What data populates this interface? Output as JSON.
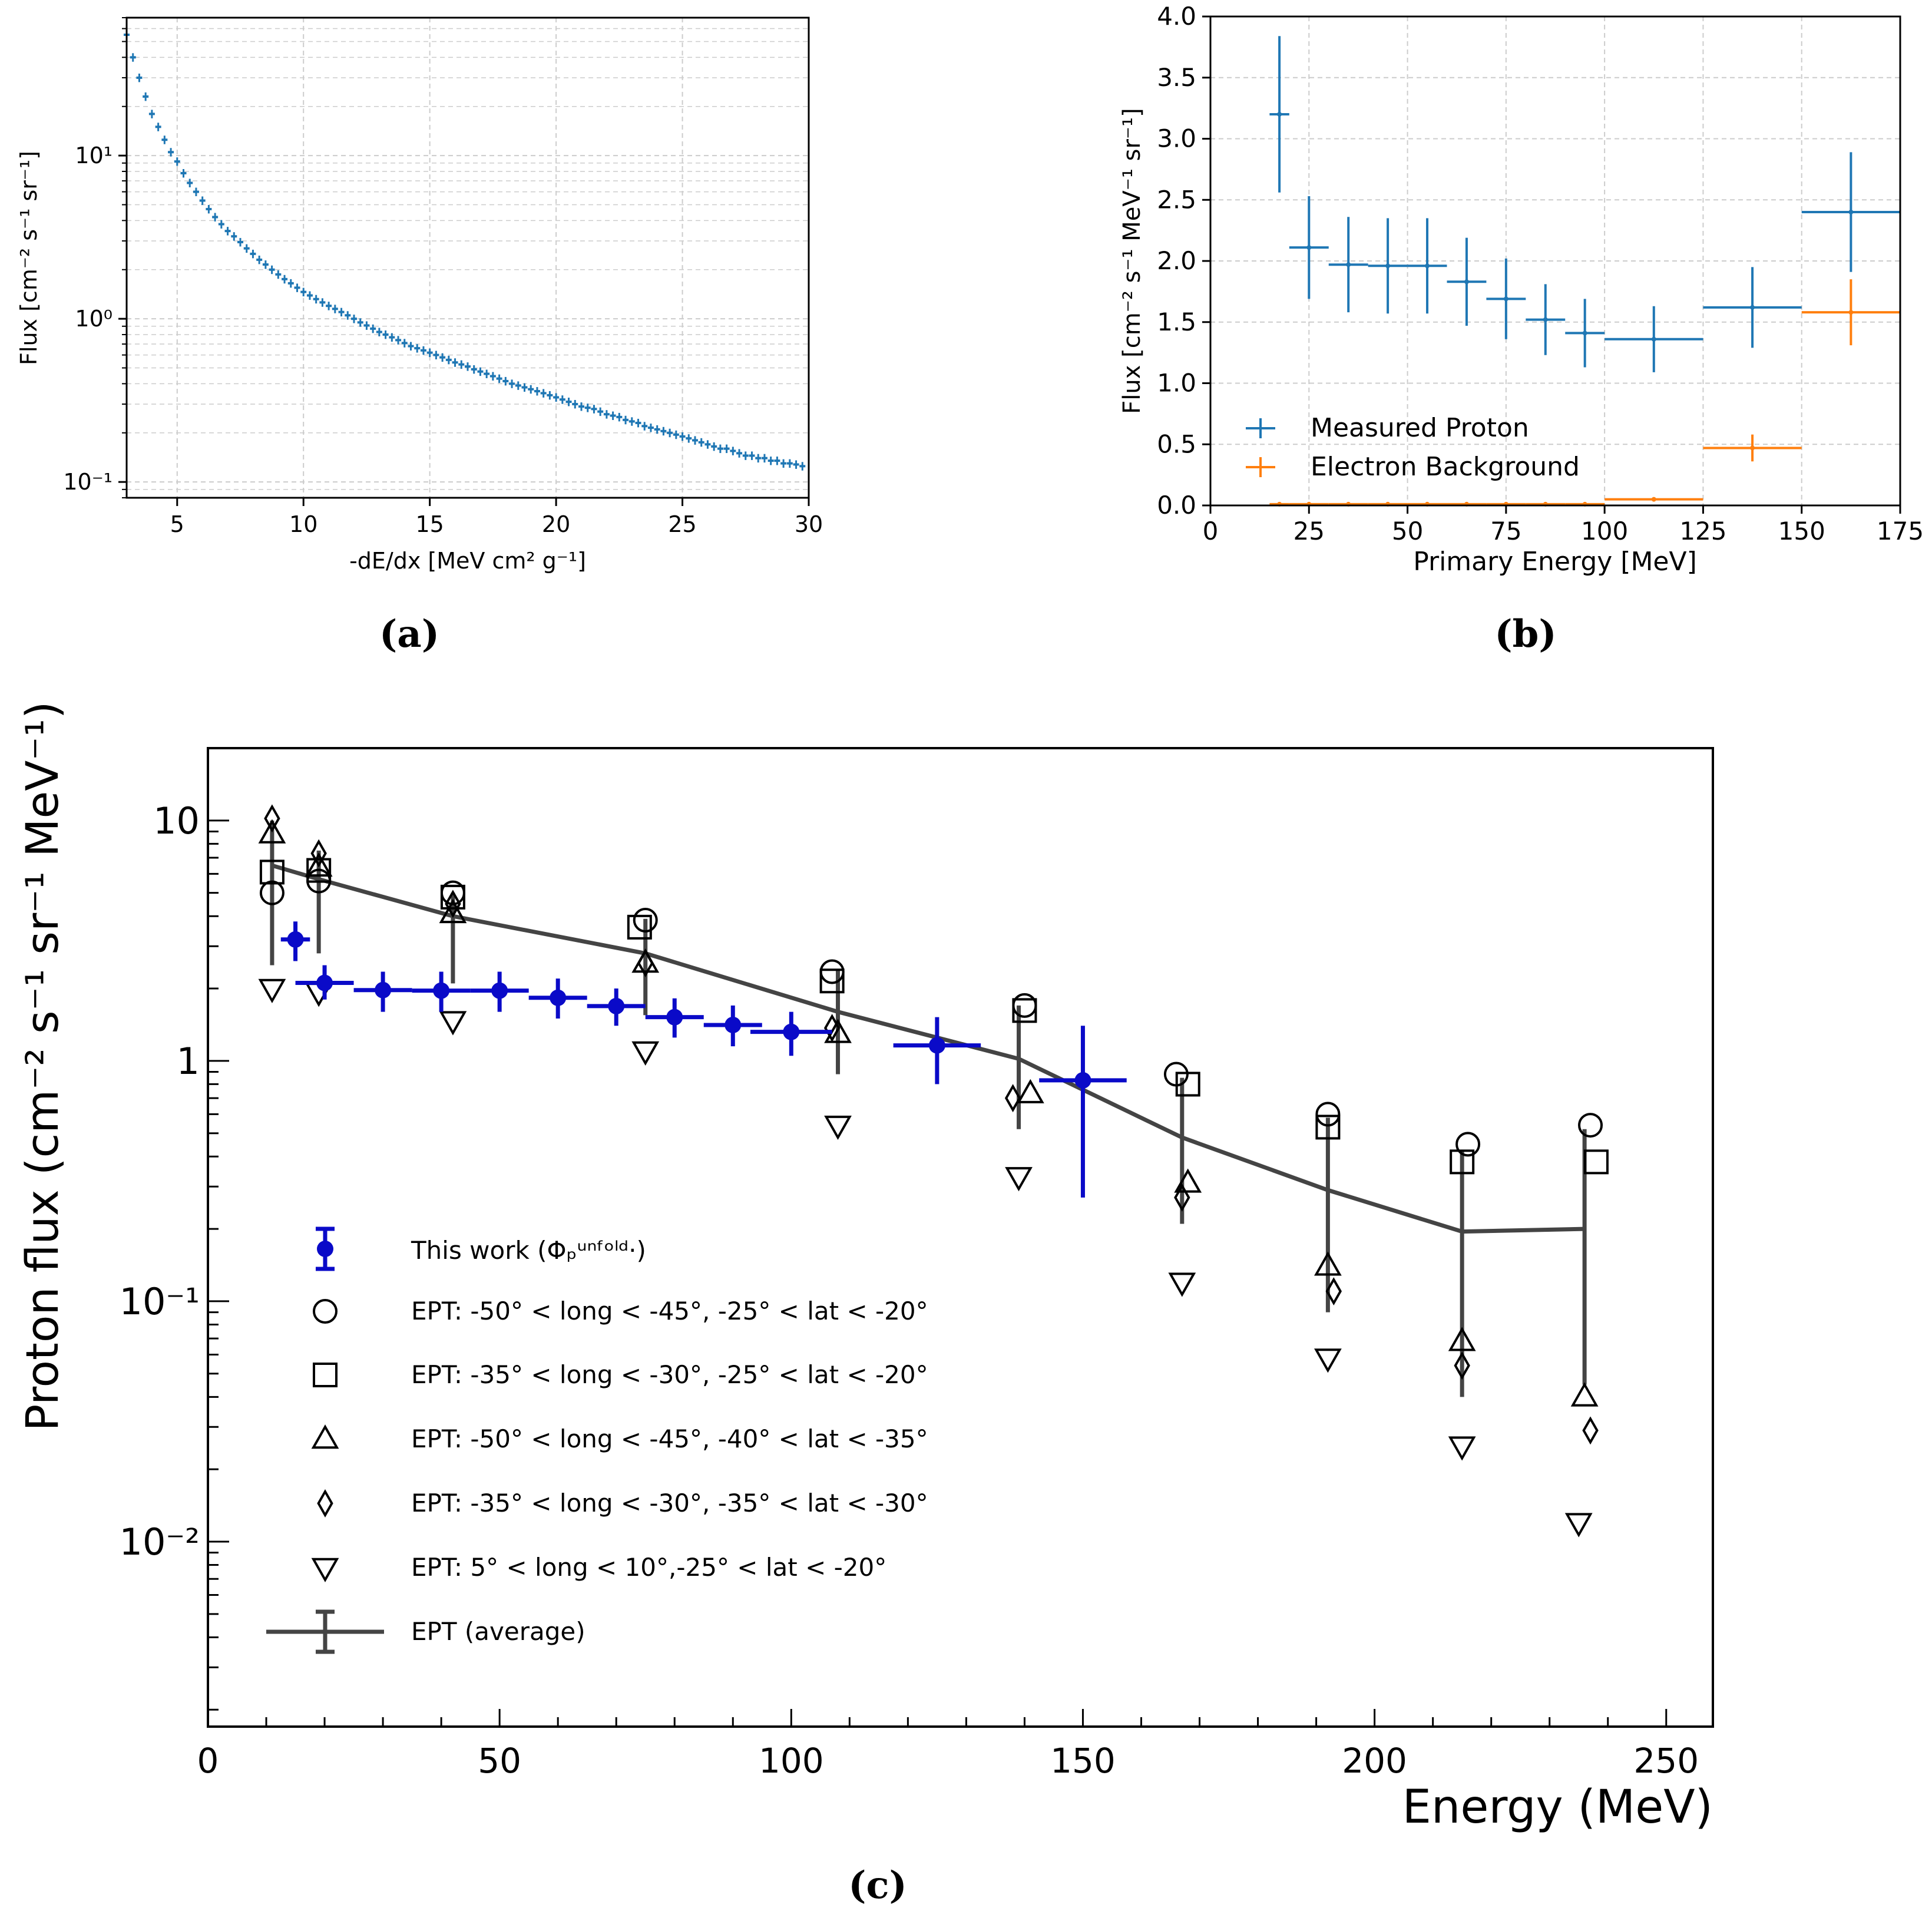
{
  "panels": {
    "a_label": "(a)",
    "b_label": "(b)",
    "c_label": "(c)"
  },
  "colors": {
    "mpl_blue": "#1f77b4",
    "mpl_orange": "#ff7f0e",
    "this_work_blue": "#0a0ac8",
    "ept_gray": "#444444",
    "grid": "#cccccc"
  },
  "chart_data": [
    {
      "id": "a",
      "type": "scatter",
      "title": "",
      "xlabel": "-dE/dx [MeV cm² g⁻¹]",
      "ylabel": "Flux [cm⁻² s⁻¹ sr⁻¹]",
      "xlim": [
        3,
        30
      ],
      "ylim": [
        0.08,
        70
      ],
      "yscale": "log",
      "grid": true,
      "xticks": [
        5,
        10,
        15,
        20,
        25,
        30
      ],
      "xtick_labels": [
        "5",
        "10",
        "15",
        "20",
        "25",
        "30"
      ],
      "yticks": [
        0.1,
        1,
        10
      ],
      "ytick_labels": [
        "10⁻¹",
        "10⁰",
        "10¹"
      ],
      "x": [
        3.0,
        3.25,
        3.5,
        3.75,
        4.0,
        4.25,
        4.5,
        4.75,
        5.0,
        5.25,
        5.5,
        5.75,
        6.0,
        6.25,
        6.5,
        6.75,
        7.0,
        7.25,
        7.5,
        7.75,
        8.0,
        8.25,
        8.5,
        8.75,
        9.0,
        9.25,
        9.5,
        9.75,
        10.0,
        10.25,
        10.5,
        10.75,
        11.0,
        11.25,
        11.5,
        11.75,
        12.0,
        12.25,
        12.5,
        12.75,
        13.0,
        13.25,
        13.5,
        13.75,
        14.0,
        14.25,
        14.5,
        14.75,
        15.0,
        15.25,
        15.5,
        15.75,
        16.0,
        16.25,
        16.5,
        16.75,
        17.0,
        17.25,
        17.5,
        17.75,
        18.0,
        18.25,
        18.5,
        18.75,
        19.0,
        19.25,
        19.5,
        19.75,
        20.0,
        20.25,
        20.5,
        20.75,
        21.0,
        21.25,
        21.5,
        21.75,
        22.0,
        22.25,
        22.5,
        22.75,
        23.0,
        23.25,
        23.5,
        23.75,
        24.0,
        24.25,
        24.5,
        24.75,
        25.0,
        25.25,
        25.5,
        25.75,
        26.0,
        26.25,
        26.5,
        26.75,
        27.0,
        27.25,
        27.5,
        27.75,
        28.0,
        28.25,
        28.5,
        28.75,
        29.0,
        29.25,
        29.5,
        29.75
      ],
      "y": [
        55,
        40,
        30,
        23,
        18,
        15,
        12.5,
        10.5,
        9.2,
        7.8,
        6.8,
        6.0,
        5.3,
        4.7,
        4.2,
        3.8,
        3.45,
        3.2,
        2.95,
        2.7,
        2.5,
        2.3,
        2.15,
        2.0,
        1.87,
        1.75,
        1.65,
        1.55,
        1.46,
        1.39,
        1.32,
        1.26,
        1.2,
        1.15,
        1.1,
        1.05,
        1.0,
        0.95,
        0.91,
        0.87,
        0.83,
        0.8,
        0.77,
        0.74,
        0.71,
        0.68,
        0.66,
        0.64,
        0.62,
        0.6,
        0.58,
        0.56,
        0.54,
        0.525,
        0.51,
        0.49,
        0.475,
        0.46,
        0.445,
        0.43,
        0.415,
        0.4,
        0.39,
        0.38,
        0.37,
        0.36,
        0.35,
        0.34,
        0.33,
        0.32,
        0.31,
        0.3,
        0.29,
        0.285,
        0.28,
        0.27,
        0.26,
        0.255,
        0.25,
        0.24,
        0.235,
        0.23,
        0.22,
        0.215,
        0.21,
        0.205,
        0.2,
        0.195,
        0.19,
        0.185,
        0.18,
        0.175,
        0.17,
        0.165,
        0.16,
        0.16,
        0.155,
        0.15,
        0.145,
        0.145,
        0.14,
        0.14,
        0.135,
        0.135,
        0.13,
        0.13,
        0.128,
        0.125
      ]
    },
    {
      "id": "b",
      "type": "scatter",
      "title": "",
      "xlabel": "Primary Energy [MeV]",
      "ylabel": "Flux [cm⁻² s⁻¹ MeV⁻¹ sr⁻¹]",
      "xlim": [
        0,
        175
      ],
      "ylim": [
        0,
        4.0
      ],
      "grid": true,
      "xticks": [
        0,
        25,
        50,
        75,
        100,
        125,
        150,
        175
      ],
      "xtick_labels": [
        "0",
        "25",
        "50",
        "75",
        "100",
        "125",
        "150",
        "175"
      ],
      "yticks": [
        0,
        0.5,
        1.0,
        1.5,
        2.0,
        2.5,
        3.0,
        3.5,
        4.0
      ],
      "ytick_labels": [
        "0.0",
        "0.5",
        "1.0",
        "1.5",
        "2.0",
        "2.5",
        "3.0",
        "3.5",
        "4.0"
      ],
      "legend": {
        "position": "lower-left",
        "entries": [
          "Measured Proton",
          "Electron Background"
        ]
      },
      "series": [
        {
          "name": "Measured Proton",
          "x": [
            17.5,
            25,
            35,
            45,
            55,
            65,
            75,
            85,
            95,
            112.5,
            137.5,
            162.5
          ],
          "xerr": [
            2.5,
            5,
            5,
            5,
            5,
            5,
            5,
            5,
            5,
            12.5,
            12.5,
            12.5
          ],
          "y": [
            3.2,
            2.11,
            1.97,
            1.96,
            1.96,
            1.83,
            1.69,
            1.52,
            1.41,
            1.36,
            1.62,
            2.4
          ],
          "yerr": [
            0.64,
            0.42,
            0.39,
            0.39,
            0.39,
            0.36,
            0.33,
            0.29,
            0.28,
            0.27,
            0.33,
            0.49
          ]
        },
        {
          "name": "Electron Background",
          "x": [
            17.5,
            25,
            35,
            45,
            55,
            65,
            75,
            85,
            95,
            112.5,
            137.5,
            162.5
          ],
          "xerr": [
            2.5,
            5,
            5,
            5,
            5,
            5,
            5,
            5,
            5,
            12.5,
            12.5,
            12.5
          ],
          "y": [
            0.01,
            0.01,
            0.01,
            0.01,
            0.01,
            0.01,
            0.01,
            0.01,
            0.01,
            0.05,
            0.47,
            1.58
          ],
          "yerr": [
            0.005,
            0.005,
            0.005,
            0.005,
            0.005,
            0.005,
            0.005,
            0.005,
            0.005,
            0.01,
            0.11,
            0.27
          ]
        }
      ]
    },
    {
      "id": "c",
      "type": "scatter",
      "title": "",
      "xlabel": "Energy (MeV)",
      "ylabel": "Proton flux (cm⁻² s⁻¹ sr⁻¹ MeV⁻¹)",
      "xlim": [
        0,
        258
      ],
      "ylim": [
        0.0017,
        20
      ],
      "yscale": "log",
      "grid": false,
      "xticks": [
        0,
        50,
        100,
        150,
        200,
        250
      ],
      "xtick_labels": [
        "0",
        "50",
        "100",
        "150",
        "200",
        "250"
      ],
      "yticks": [
        0.01,
        0.1,
        1,
        10
      ],
      "ytick_labels": [
        "10⁻²",
        "10⁻¹",
        "1",
        "10"
      ],
      "legend": {
        "position": "lower-left",
        "entries": [
          "This work (Φₚᵘⁿᶠᵒˡᵈ·)",
          "EPT: -50° < long < -45°, -25° < lat < -20°",
          "EPT: -35° < long < -30°, -25° < lat < -20°",
          "EPT: -50° < long < -45°, -40° < lat < -35°",
          "EPT: -35° < long < -30°, -35° < lat < -30°",
          "EPT: 5° < long < 10°,-25° < lat < -20°",
          "EPT (average)"
        ]
      },
      "series": [
        {
          "name": "This work",
          "marker": "filled-circle",
          "x": [
            15,
            20,
            30,
            40,
            50,
            60,
            70,
            80,
            90,
            100,
            125,
            150
          ],
          "xerr": [
            2.5,
            5,
            5,
            5,
            5,
            5,
            5,
            5,
            5,
            7,
            7.5,
            7.5
          ],
          "y": [
            3.2,
            2.11,
            1.97,
            1.96,
            1.96,
            1.83,
            1.69,
            1.52,
            1.41,
            1.32,
            1.16,
            0.83
          ],
          "ylo": [
            2.6,
            1.8,
            1.6,
            1.6,
            1.6,
            1.5,
            1.4,
            1.25,
            1.15,
            1.05,
            0.8,
            0.27
          ],
          "yhi": [
            3.8,
            2.5,
            2.35,
            2.35,
            2.35,
            2.2,
            2.0,
            1.82,
            1.7,
            1.6,
            1.52,
            1.4
          ]
        },
        {
          "name": "EPT A",
          "marker": "circle",
          "x": [
            11,
            19,
            42,
            75,
            107,
            140,
            166,
            192,
            216,
            237
          ],
          "y": [
            5.0,
            5.6,
            5.0,
            3.85,
            2.35,
            1.7,
            0.88,
            0.6,
            0.45,
            0.54
          ]
        },
        {
          "name": "EPT B",
          "marker": "square",
          "x": [
            11,
            19,
            42,
            74,
            107,
            140,
            168,
            192,
            215,
            238
          ],
          "y": [
            6.1,
            6.2,
            4.8,
            3.6,
            2.15,
            1.62,
            0.8,
            0.53,
            0.38,
            0.38
          ]
        },
        {
          "name": "EPT C",
          "marker": "triangle-up",
          "x": [
            11,
            19,
            42,
            75,
            108,
            141,
            168,
            192,
            215,
            236
          ],
          "y": [
            8.8,
            6.4,
            4.1,
            2.55,
            1.3,
            0.73,
            0.31,
            0.14,
            0.068,
            0.04
          ]
        },
        {
          "name": "EPT D",
          "marker": "diamond",
          "x": [
            11,
            19,
            42,
            75,
            107,
            138,
            167,
            193,
            215,
            237
          ],
          "y": [
            10.2,
            7.3,
            4.5,
            2.55,
            1.37,
            0.7,
            0.27,
            0.11,
            0.054,
            0.029
          ]
        },
        {
          "name": "EPT E",
          "marker": "triangle-down",
          "x": [
            11,
            19,
            42,
            75,
            108,
            139,
            167,
            192,
            215,
            235
          ],
          "y": [
            2.0,
            1.93,
            1.47,
            1.1,
            0.54,
            0.33,
            0.12,
            0.058,
            0.025,
            0.012
          ]
        },
        {
          "name": "EPT (average)",
          "marker": "line",
          "x": [
            11,
            19,
            42,
            75,
            108,
            139,
            167,
            192,
            215,
            236
          ],
          "y": [
            6.5,
            5.7,
            4.0,
            2.8,
            1.6,
            1.02,
            0.48,
            0.29,
            0.195,
            0.2
          ],
          "ylo": [
            2.5,
            2.8,
            2.1,
            1.55,
            0.88,
            0.52,
            0.21,
            0.09,
            0.04,
            0.045
          ],
          "yhi": [
            10.0,
            7.5,
            5.0,
            3.9,
            2.4,
            1.7,
            0.85,
            0.58,
            0.42,
            0.52
          ]
        }
      ]
    }
  ]
}
